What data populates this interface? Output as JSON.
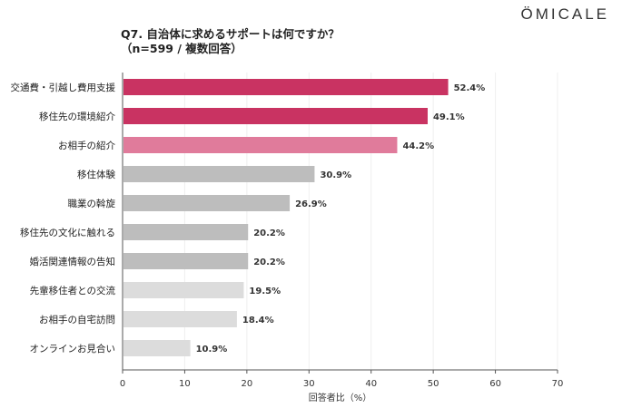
{
  "logo": "ÖMICALE",
  "chart_data": {
    "type": "bar",
    "orientation": "horizontal",
    "title": "Q7. 自治体に求めるサポートは何ですか？",
    "subtitle": "（n=599 / 複数回答）",
    "xlabel": "回答者比（%）",
    "ylabel": "",
    "xlim": [
      0,
      70
    ],
    "xticks": [
      0,
      10,
      20,
      30,
      40,
      50,
      60,
      70
    ],
    "grid": true,
    "categories": [
      "交通費・引越し費用支援",
      "移住先の環境紹介",
      "お相手の紹介",
      "移住体験",
      "職業の斡旋",
      "移住先の文化に触れる",
      "婚活関連情報の告知",
      "先輩移住者との交流",
      "お相手の自宅訪問",
      "オンラインお見合い"
    ],
    "values": [
      52.4,
      49.1,
      44.2,
      30.9,
      26.9,
      20.2,
      20.2,
      19.5,
      18.4,
      10.9
    ],
    "labels": [
      "52.4%",
      "49.1%",
      "44.2%",
      "30.9%",
      "26.9%",
      "20.2%",
      "20.2%",
      "19.5%",
      "18.4%",
      "10.9%"
    ],
    "colors": [
      "#c93362",
      "#c93362",
      "#e07b9b",
      "#bdbdbd",
      "#bdbdbd",
      "#bdbdbd",
      "#bdbdbd",
      "#dcdcdc",
      "#dcdcdc",
      "#dcdcdc"
    ]
  }
}
